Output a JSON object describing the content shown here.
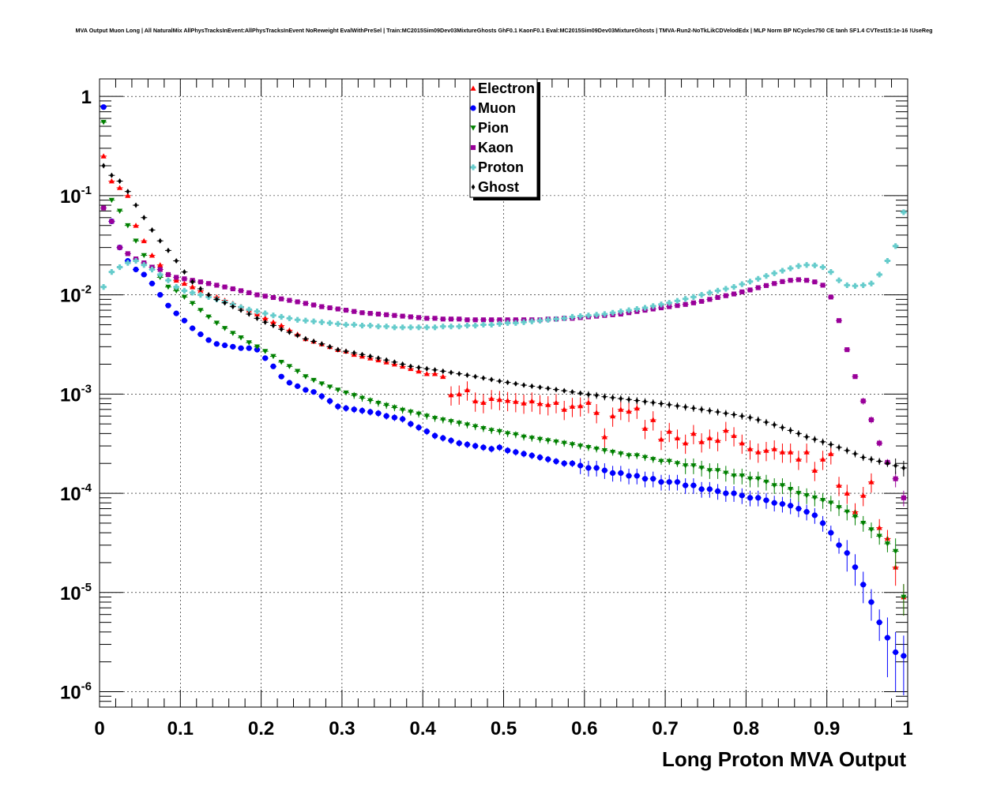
{
  "page_title": "MVA Output Muon Long | All NaturalMix AllPhysTracksInEvent:AllPhysTracksInEvent NoReweight EvalWithPreSel | Train:MC2015Sim09Dev03MixtureGhosts GhF0.1 KaonF0.1 Eval:MC2015Sim09Dev03MixtureGhosts | TMVA-Run2-NoTkLikCDVelodEdx | MLP Norm BP NCycles750 CE tanh SF1.4 CVTest15:1e-16 !UseReg",
  "chart_data": {
    "type": "scatter",
    "title": "MVA Output Muon Long | All NaturalMix AllPhysTracksInEvent:AllPhysTracksInEvent NoReweight EvalWithPreSel | Train:MC2015Sim09Dev03MixtureGhosts GhF0.1 KaonF0.1 Eval:MC2015Sim09Dev03MixtureGhosts | TMVA-Run2-NoTkLikCDVelodEdx | MLP Norm BP NCycles750 CE tanh SF1.4 CVTest15:1e-16 !UseReg",
    "xlabel": "Long Proton MVA Output",
    "ylabel": "",
    "xlim": [
      0,
      1
    ],
    "ylim": [
      7e-07,
      1.5
    ],
    "yscale": "log",
    "grid": true,
    "legend_position": "top-center",
    "x_tick_labels": [
      "0",
      "0.1",
      "0.2",
      "0.3",
      "0.4",
      "0.5",
      "0.6",
      "0.7",
      "0.8",
      "0.9",
      "1"
    ],
    "y_tick_labels": [
      {
        "base": "10",
        "exp": "-6"
      },
      {
        "base": "10",
        "exp": "-5"
      },
      {
        "base": "10",
        "exp": "-4"
      },
      {
        "base": "10",
        "exp": "-3"
      },
      {
        "base": "10",
        "exp": "-2"
      },
      {
        "base": "10",
        "exp": "-1"
      },
      {
        "base": "1",
        "exp": ""
      }
    ],
    "x": [
      0.005,
      0.015,
      0.025,
      0.035,
      0.045,
      0.055,
      0.065,
      0.075,
      0.085,
      0.095,
      0.105,
      0.115,
      0.125,
      0.135,
      0.145,
      0.155,
      0.165,
      0.175,
      0.185,
      0.195,
      0.205,
      0.215,
      0.225,
      0.235,
      0.245,
      0.255,
      0.265,
      0.275,
      0.285,
      0.295,
      0.305,
      0.315,
      0.325,
      0.335,
      0.345,
      0.355,
      0.365,
      0.375,
      0.385,
      0.395,
      0.405,
      0.415,
      0.425,
      0.435,
      0.445,
      0.455,
      0.465,
      0.475,
      0.485,
      0.495,
      0.505,
      0.515,
      0.525,
      0.535,
      0.545,
      0.555,
      0.565,
      0.575,
      0.585,
      0.595,
      0.605,
      0.615,
      0.625,
      0.635,
      0.645,
      0.655,
      0.665,
      0.675,
      0.685,
      0.695,
      0.705,
      0.715,
      0.725,
      0.735,
      0.745,
      0.755,
      0.765,
      0.775,
      0.785,
      0.795,
      0.805,
      0.815,
      0.825,
      0.835,
      0.845,
      0.855,
      0.865,
      0.875,
      0.885,
      0.895,
      0.905,
      0.915,
      0.925,
      0.935,
      0.945,
      0.955,
      0.965,
      0.975,
      0.985,
      0.995
    ],
    "series": [
      {
        "name": "Electron",
        "color": "#ff0000",
        "marker": "triangle-up",
        "error_bars": true,
        "values": [
          0.25,
          0.14,
          0.12,
          0.1,
          0.05,
          0.035,
          0.025,
          0.02,
          0.016,
          0.014,
          0.013,
          0.012,
          0.011,
          0.01,
          0.0095,
          0.0088,
          0.0082,
          0.0076,
          0.007,
          0.0064,
          0.0058,
          0.0053,
          0.0049,
          0.0044,
          0.004,
          0.0036,
          0.0034,
          0.0032,
          0.003,
          0.0028,
          0.0027,
          0.0025,
          0.0024,
          0.0023,
          0.0022,
          0.0021,
          0.002,
          0.0019,
          0.0018,
          0.0017,
          0.0016,
          0.0016,
          0.0015,
          0.00098,
          0.001,
          0.0011,
          0.00085,
          0.00082,
          0.0009,
          0.00088,
          0.00086,
          0.00084,
          0.00081,
          0.00085,
          0.0008,
          0.00078,
          0.00082,
          0.0007,
          0.00075,
          0.00076,
          0.00082,
          0.00065,
          0.00037,
          0.0006,
          0.0007,
          0.00067,
          0.00072,
          0.00045,
          0.00055,
          0.00035,
          0.00042,
          0.00036,
          0.00032,
          0.0004,
          0.00033,
          0.00036,
          0.00034,
          0.00043,
          0.00038,
          0.00032,
          0.00028,
          0.00026,
          0.00027,
          0.00028,
          0.00026,
          0.00026,
          0.00022,
          0.00026,
          0.00017,
          0.00022,
          0.00025,
          0.00012,
          0.0001,
          6.5e-05,
          9.5e-05,
          0.00013,
          4.5e-05,
          3.5e-05,
          1.8e-05,
          9e-06
        ]
      },
      {
        "name": "Muon",
        "color": "#0000ff",
        "marker": "circle",
        "error_bars": true,
        "values": [
          0.78,
          0.055,
          0.03,
          0.022,
          0.018,
          0.016,
          0.013,
          0.01,
          0.0078,
          0.0065,
          0.0055,
          0.0046,
          0.004,
          0.0035,
          0.0032,
          0.0031,
          0.003,
          0.0029,
          0.0029,
          0.0028,
          0.0023,
          0.0019,
          0.0015,
          0.0013,
          0.0012,
          0.0011,
          0.00105,
          0.00095,
          0.00085,
          0.00075,
          0.00072,
          0.0007,
          0.00068,
          0.00066,
          0.00064,
          0.0006,
          0.00058,
          0.00056,
          0.0005,
          0.00046,
          0.00042,
          0.00038,
          0.00036,
          0.00034,
          0.00032,
          0.00031,
          0.0003,
          0.00029,
          0.00028,
          0.00029,
          0.00027,
          0.00026,
          0.00025,
          0.00024,
          0.00023,
          0.00022,
          0.00021,
          0.0002,
          0.0002,
          0.00019,
          0.00018,
          0.00018,
          0.00017,
          0.00016,
          0.00016,
          0.00015,
          0.00015,
          0.00014,
          0.00014,
          0.00013,
          0.00013,
          0.00013,
          0.00012,
          0.00012,
          0.00011,
          0.00011,
          0.000105,
          0.0001,
          0.0001,
          9.5e-05,
          9e-05,
          9e-05,
          8.5e-05,
          8e-05,
          7.8e-05,
          7.5e-05,
          7e-05,
          6.5e-05,
          6e-05,
          5e-05,
          4e-05,
          3e-05,
          2.5e-05,
          1.8e-05,
          1.2e-05,
          8e-06,
          5e-06,
          3.5e-06,
          2.5e-06,
          2.3e-06
        ]
      },
      {
        "name": "Pion",
        "color": "#008000",
        "marker": "triangle-down",
        "error_bars": true,
        "values": [
          0.55,
          0.09,
          0.07,
          0.05,
          0.035,
          0.025,
          0.019,
          0.015,
          0.012,
          0.011,
          0.0095,
          0.0082,
          0.007,
          0.006,
          0.0052,
          0.0046,
          0.0041,
          0.0037,
          0.0033,
          0.003,
          0.0027,
          0.0024,
          0.0021,
          0.0019,
          0.0017,
          0.0015,
          0.00138,
          0.00127,
          0.00118,
          0.0011,
          0.00103,
          0.00097,
          0.00091,
          0.00086,
          0.00081,
          0.00077,
          0.00073,
          0.00069,
          0.00066,
          0.00063,
          0.0006,
          0.00057,
          0.00055,
          0.00053,
          0.00051,
          0.00049,
          0.00047,
          0.00045,
          0.00043,
          0.00042,
          0.0004,
          0.00039,
          0.00037,
          0.00036,
          0.00035,
          0.00034,
          0.00033,
          0.00032,
          0.00031,
          0.0003,
          0.00029,
          0.00028,
          0.00027,
          0.00026,
          0.00025,
          0.00024,
          0.00024,
          0.00023,
          0.00022,
          0.00021,
          0.00021,
          0.0002,
          0.00019,
          0.00019,
          0.00018,
          0.00017,
          0.00017,
          0.00016,
          0.00015,
          0.00015,
          0.00014,
          0.00014,
          0.00013,
          0.00012,
          0.00012,
          0.00011,
          0.0001,
          9.5e-05,
          9e-05,
          8.5e-05,
          8e-05,
          7.2e-05,
          6.5e-05,
          5.8e-05,
          5e-05,
          4.3e-05,
          3.7e-05,
          3.1e-05,
          2.6e-05,
          9e-06
        ]
      },
      {
        "name": "Kaon",
        "color": "#990099",
        "marker": "square",
        "error_bars": true,
        "values": [
          0.075,
          0.055,
          0.03,
          0.026,
          0.023,
          0.021,
          0.019,
          0.018,
          0.016,
          0.015,
          0.0145,
          0.014,
          0.0135,
          0.013,
          0.0125,
          0.012,
          0.0115,
          0.011,
          0.0105,
          0.01,
          0.0097,
          0.0094,
          0.0091,
          0.0088,
          0.0085,
          0.0082,
          0.0079,
          0.0076,
          0.0074,
          0.0072,
          0.007,
          0.0068,
          0.0066,
          0.0065,
          0.0064,
          0.0063,
          0.0062,
          0.0061,
          0.006,
          0.0059,
          0.0058,
          0.0058,
          0.0057,
          0.0057,
          0.0057,
          0.0056,
          0.0056,
          0.0056,
          0.0056,
          0.0056,
          0.0056,
          0.0056,
          0.0056,
          0.0056,
          0.0056,
          0.0057,
          0.0057,
          0.0058,
          0.0058,
          0.0059,
          0.006,
          0.0061,
          0.0062,
          0.0063,
          0.0064,
          0.0066,
          0.0068,
          0.007,
          0.0072,
          0.0074,
          0.0076,
          0.0078,
          0.008,
          0.0083,
          0.0086,
          0.009,
          0.0094,
          0.0098,
          0.0102,
          0.0107,
          0.0112,
          0.0118,
          0.0124,
          0.013,
          0.0136,
          0.014,
          0.0142,
          0.014,
          0.0135,
          0.0125,
          0.0095,
          0.0055,
          0.0028,
          0.0015,
          0.00085,
          0.00055,
          0.00032,
          0.000205,
          0.00014,
          9e-05
        ]
      },
      {
        "name": "Proton",
        "color": "#66cccc",
        "marker": "cross",
        "error_bars": true,
        "values": [
          0.012,
          0.017,
          0.019,
          0.021,
          0.022,
          0.02,
          0.018,
          0.016,
          0.014,
          0.012,
          0.011,
          0.0105,
          0.01,
          0.0095,
          0.009,
          0.0085,
          0.008,
          0.0075,
          0.0071,
          0.0068,
          0.0065,
          0.0062,
          0.006,
          0.0058,
          0.0056,
          0.0055,
          0.0054,
          0.0053,
          0.0052,
          0.0051,
          0.005,
          0.005,
          0.0049,
          0.0049,
          0.0048,
          0.0048,
          0.0047,
          0.0047,
          0.0047,
          0.0047,
          0.0047,
          0.0047,
          0.0048,
          0.0048,
          0.0048,
          0.0049,
          0.0049,
          0.005,
          0.005,
          0.0051,
          0.0052,
          0.0052,
          0.0053,
          0.0054,
          0.0055,
          0.0056,
          0.0057,
          0.0058,
          0.006,
          0.0061,
          0.0062,
          0.0063,
          0.0064,
          0.0066,
          0.0068,
          0.007,
          0.0072,
          0.0074,
          0.0077,
          0.008,
          0.0083,
          0.0087,
          0.0091,
          0.0095,
          0.01,
          0.0105,
          0.011,
          0.0115,
          0.012,
          0.0128,
          0.0136,
          0.0145,
          0.0155,
          0.0165,
          0.0175,
          0.0185,
          0.0195,
          0.02,
          0.0198,
          0.019,
          0.017,
          0.014,
          0.0125,
          0.0123,
          0.0125,
          0.013,
          0.016,
          0.022,
          0.031,
          0.068
        ]
      },
      {
        "name": "Ghost",
        "color": "#000000",
        "marker": "diamond",
        "error_bars": true,
        "values": [
          0.2,
          0.16,
          0.14,
          0.11,
          0.08,
          0.06,
          0.045,
          0.035,
          0.028,
          0.022,
          0.017,
          0.0135,
          0.0115,
          0.01,
          0.009,
          0.0083,
          0.0076,
          0.007,
          0.0064,
          0.0058,
          0.0053,
          0.0049,
          0.0045,
          0.0042,
          0.0039,
          0.0036,
          0.0034,
          0.0032,
          0.003,
          0.0028,
          0.0027,
          0.0026,
          0.0025,
          0.0024,
          0.0023,
          0.0022,
          0.0021,
          0.002,
          0.0019,
          0.00185,
          0.0018,
          0.00175,
          0.0017,
          0.00165,
          0.0016,
          0.00155,
          0.0015,
          0.00145,
          0.0014,
          0.00135,
          0.00131,
          0.00127,
          0.00123,
          0.0012,
          0.00117,
          0.00114,
          0.00111,
          0.00108,
          0.00105,
          0.00102,
          0.00099,
          0.00097,
          0.00094,
          0.00092,
          0.0009,
          0.00088,
          0.00086,
          0.00084,
          0.00082,
          0.0008,
          0.00078,
          0.00076,
          0.00074,
          0.00072,
          0.0007,
          0.00068,
          0.00066,
          0.00064,
          0.00062,
          0.0006,
          0.00058,
          0.00055,
          0.00052,
          0.00049,
          0.00046,
          0.00043,
          0.0004,
          0.00037,
          0.00035,
          0.00033,
          0.00031,
          0.00029,
          0.00027,
          0.00025,
          0.00023,
          0.00022,
          0.00021,
          0.0002,
          0.00019,
          0.00018
        ]
      }
    ]
  }
}
